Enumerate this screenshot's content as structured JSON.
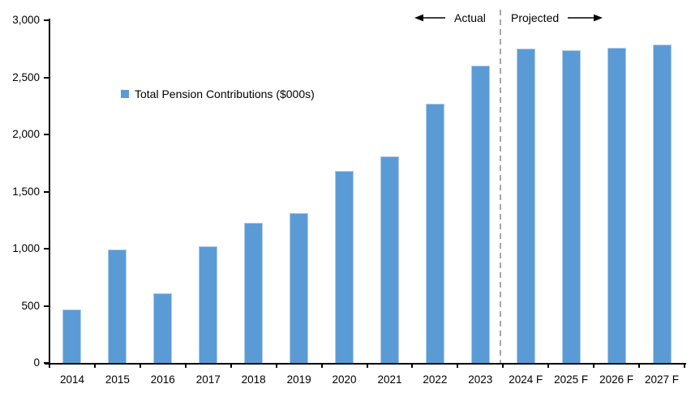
{
  "chart_data": {
    "type": "bar",
    "title": "",
    "categories": [
      "2014",
      "2015",
      "2016",
      "2017",
      "2018",
      "2019",
      "2020",
      "2021",
      "2022",
      "2023",
      "2024 F",
      "2025 F",
      "2026 F",
      "2027 F"
    ],
    "series": [
      {
        "name": "Total Pension Contributions ($000s)",
        "color": "#5B9BD5",
        "values": [
          470,
          990,
          610,
          1020,
          1230,
          1310,
          1680,
          1810,
          2270,
          2600,
          2750,
          2740,
          2760,
          2790
        ]
      }
    ],
    "xlabel": "",
    "ylabel": "",
    "ylim": [
      0,
      3000
    ],
    "y_tick_values": [
      0,
      500,
      1000,
      1500,
      2000,
      2500,
      3000
    ],
    "y_tick_labels": [
      "0",
      "500",
      "1,000",
      "1,500",
      "2,000",
      "2,500",
      "3,000"
    ],
    "grid": false,
    "legend_position": "inside-upper-left",
    "divider": {
      "after_category": "2023",
      "style": "dashed",
      "color": "#A6A6A6"
    },
    "annotations": {
      "left_of_divider": "Actual",
      "right_of_divider": "Projected"
    }
  },
  "legend": {
    "label": "Total Pension Contributions ($000s)",
    "swatch_color": "#5B9BD5"
  },
  "annotations": {
    "actual_label": "Actual",
    "projected_label": "Projected"
  },
  "icons": {
    "legend_swatch": "legend-swatch-icon",
    "actual_arrow": "left-arrow-icon",
    "projected_arrow": "right-arrow-icon"
  },
  "colors": {
    "bar": "#5B9BD5",
    "bar_edge": "#AECBE9",
    "divider": "#A6A6A6",
    "axis": "#000000",
    "text": "#000000",
    "background": "#FFFFFF"
  }
}
